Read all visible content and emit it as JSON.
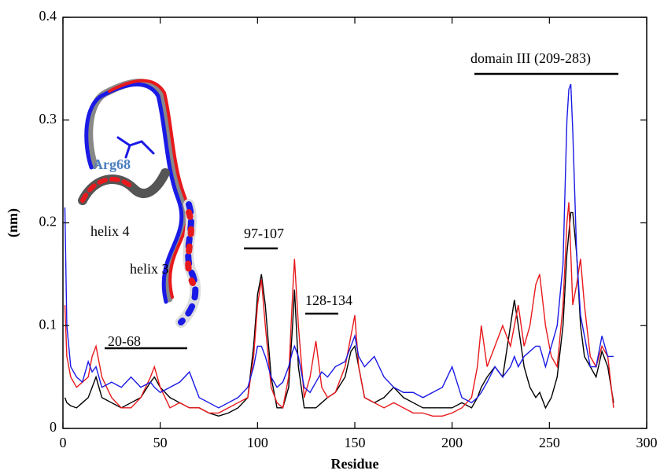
{
  "chart_data": {
    "type": "line",
    "xlabel": "Residue",
    "ylabel": "(nm)",
    "xlim": [
      0,
      300
    ],
    "xticks": [
      0,
      50,
      100,
      150,
      200,
      250,
      300
    ],
    "ylim": [
      0,
      0.4
    ],
    "yticks": [
      0,
      0.1,
      0.2,
      0.3,
      0.4
    ],
    "x": [
      1,
      2,
      4,
      7,
      10,
      13,
      15,
      17,
      20,
      25,
      30,
      35,
      40,
      45,
      47,
      50,
      55,
      60,
      65,
      70,
      75,
      80,
      85,
      90,
      95,
      98,
      100,
      102,
      104,
      107,
      110,
      113,
      116,
      118,
      119,
      121,
      124,
      127,
      130,
      133,
      136,
      140,
      145,
      148,
      150,
      152,
      155,
      160,
      165,
      170,
      175,
      180,
      185,
      190,
      195,
      200,
      205,
      210,
      213,
      215,
      218,
      222,
      226,
      230,
      232,
      234,
      237,
      240,
      243,
      245,
      248,
      251,
      254,
      257,
      259,
      260,
      261,
      262,
      264,
      266,
      268,
      271,
      274,
      277,
      280,
      283
    ],
    "series": [
      {
        "color": "#000000",
        "values": [
          0.03,
          0.025,
          0.022,
          0.02,
          0.025,
          0.03,
          0.04,
          0.05,
          0.03,
          0.025,
          0.02,
          0.025,
          0.03,
          0.045,
          0.05,
          0.04,
          0.03,
          0.025,
          0.02,
          0.02,
          0.015,
          0.012,
          0.015,
          0.02,
          0.03,
          0.08,
          0.13,
          0.15,
          0.12,
          0.05,
          0.02,
          0.02,
          0.04,
          0.1,
          0.135,
          0.06,
          0.02,
          0.02,
          0.02,
          0.025,
          0.03,
          0.035,
          0.05,
          0.075,
          0.08,
          0.06,
          0.03,
          0.025,
          0.03,
          0.04,
          0.03,
          0.025,
          0.02,
          0.02,
          0.02,
          0.02,
          0.025,
          0.02,
          0.03,
          0.04,
          0.05,
          0.06,
          0.05,
          0.1,
          0.125,
          0.1,
          0.06,
          0.04,
          0.03,
          0.035,
          0.02,
          0.03,
          0.05,
          0.1,
          0.17,
          0.19,
          0.21,
          0.21,
          0.17,
          0.1,
          0.07,
          0.06,
          0.05,
          0.075,
          0.06,
          0.025
        ]
      },
      {
        "color": "#e8191c",
        "values": [
          0.12,
          0.07,
          0.05,
          0.04,
          0.045,
          0.05,
          0.07,
          0.08,
          0.05,
          0.03,
          0.02,
          0.02,
          0.03,
          0.05,
          0.06,
          0.04,
          0.02,
          0.025,
          0.02,
          0.02,
          0.015,
          0.015,
          0.02,
          0.025,
          0.03,
          0.07,
          0.12,
          0.145,
          0.1,
          0.04,
          0.025,
          0.02,
          0.05,
          0.13,
          0.165,
          0.1,
          0.03,
          0.05,
          0.085,
          0.04,
          0.03,
          0.035,
          0.06,
          0.09,
          0.11,
          0.06,
          0.03,
          0.025,
          0.02,
          0.025,
          0.02,
          0.015,
          0.015,
          0.012,
          0.012,
          0.015,
          0.02,
          0.03,
          0.06,
          0.1,
          0.06,
          0.08,
          0.1,
          0.08,
          0.1,
          0.12,
          0.08,
          0.1,
          0.14,
          0.15,
          0.1,
          0.07,
          0.06,
          0.12,
          0.2,
          0.22,
          0.17,
          0.12,
          0.14,
          0.165,
          0.12,
          0.07,
          0.06,
          0.08,
          0.07,
          0.02
        ]
      },
      {
        "color": "#1a1ae6",
        "values": [
          0.215,
          0.1,
          0.06,
          0.05,
          0.045,
          0.065,
          0.055,
          0.06,
          0.04,
          0.045,
          0.04,
          0.05,
          0.04,
          0.045,
          0.04,
          0.035,
          0.04,
          0.045,
          0.055,
          0.03,
          0.025,
          0.02,
          0.025,
          0.03,
          0.04,
          0.06,
          0.08,
          0.08,
          0.07,
          0.05,
          0.04,
          0.045,
          0.06,
          0.075,
          0.08,
          0.07,
          0.04,
          0.035,
          0.045,
          0.055,
          0.05,
          0.06,
          0.065,
          0.08,
          0.09,
          0.07,
          0.06,
          0.07,
          0.05,
          0.04,
          0.035,
          0.035,
          0.03,
          0.035,
          0.04,
          0.06,
          0.03,
          0.025,
          0.03,
          0.035,
          0.045,
          0.06,
          0.05,
          0.06,
          0.07,
          0.06,
          0.07,
          0.075,
          0.08,
          0.08,
          0.06,
          0.08,
          0.1,
          0.16,
          0.3,
          0.33,
          0.335,
          0.29,
          0.17,
          0.11,
          0.09,
          0.06,
          0.06,
          0.09,
          0.07,
          0.07
        ]
      }
    ],
    "annotations": [
      "20-68",
      "97-107",
      "128-134",
      "domain III (209-283)",
      "helix 4",
      "helix 3",
      "Arg68"
    ]
  }
}
